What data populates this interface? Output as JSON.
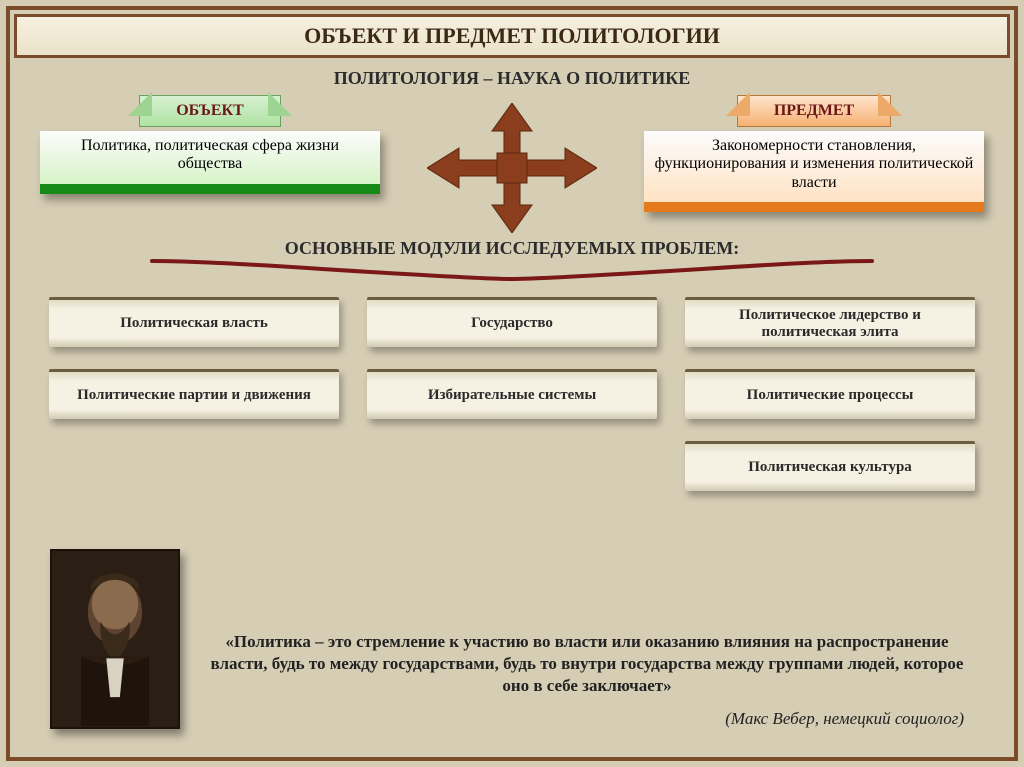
{
  "colors": {
    "page_bg": "#d5cdb4",
    "frame_border": "#7a4d28",
    "arrow_fill": "#8a3e1e",
    "brace_stroke": "#7a1818",
    "card_border_top": "#6e5c3f"
  },
  "title": "ОБЪЕКТ И ПРЕДМЕТ ПОЛИТОЛОГИИ",
  "subtitle": "ПОЛИТОЛОГИЯ – НАУКА О ПОЛИТИКЕ",
  "object": {
    "ribbon": "ОБЪЕКТ",
    "definition": "Политика, политическая сфера жизни общества"
  },
  "subject": {
    "ribbon": "ПРЕДМЕТ",
    "definition": "Закономерности становления, функционирования и изменения политической власти"
  },
  "modules_heading": "ОСНОВНЫЕ МОДУЛИ ИССЛЕДУЕМЫХ ПРОБЛЕМ:",
  "modules": [
    "Политическая власть",
    "Государство",
    "Политическое лидерство и политическая элита",
    "Политические партии и движения",
    "Избирательные системы",
    "Политические процессы",
    "",
    "",
    "Политическая культура"
  ],
  "quote": "«Политика – это стремление к участию во власти или оказанию влияния на распространение власти, будь то между государствами, будь то внутри государства между группами людей, которое оно в себе заключает»",
  "author": "(Макс Вебер, немецкий социолог)",
  "portrait_alt": "Макс Вебер"
}
